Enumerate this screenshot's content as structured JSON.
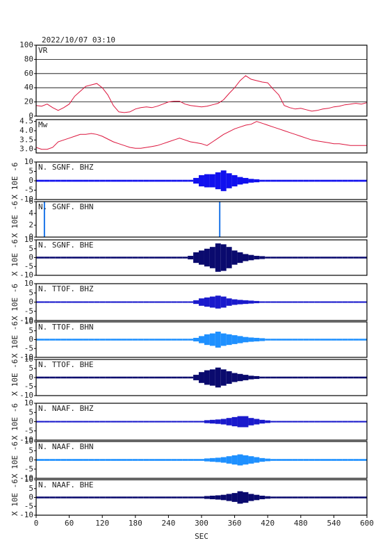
{
  "chart_data": [
    {
      "type": "line",
      "title": "2022/10/07 03:10",
      "label": "VR",
      "color": "#dc143c",
      "grid": true,
      "xlim": [
        0,
        600
      ],
      "ylim": [
        0,
        100
      ],
      "yticks": [
        0,
        20,
        40,
        60,
        80,
        100
      ],
      "x": [
        0,
        10,
        20,
        30,
        40,
        50,
        60,
        70,
        80,
        90,
        100,
        110,
        120,
        130,
        140,
        150,
        160,
        170,
        180,
        190,
        200,
        210,
        220,
        230,
        240,
        250,
        260,
        270,
        280,
        290,
        300,
        310,
        320,
        330,
        340,
        350,
        360,
        370,
        380,
        390,
        400,
        410,
        420,
        430,
        440,
        450,
        460,
        470,
        480,
        490,
        500,
        510,
        520,
        530,
        540,
        550,
        560,
        570,
        580,
        590,
        600
      ],
      "values": [
        15,
        14,
        17,
        12,
        8,
        12,
        17,
        28,
        35,
        42,
        44,
        46,
        40,
        30,
        15,
        6,
        5,
        6,
        10,
        12,
        13,
        12,
        14,
        17,
        20,
        21,
        21,
        17,
        15,
        14,
        13,
        14,
        16,
        18,
        23,
        32,
        40,
        50,
        57,
        52,
        50,
        48,
        47,
        38,
        30,
        15,
        12,
        10,
        11,
        9,
        7,
        8,
        10,
        11,
        13,
        14,
        16,
        17,
        18,
        17,
        19
      ]
    },
    {
      "type": "line",
      "label": "Mw",
      "color": "#dc143c",
      "xlim": [
        0,
        600
      ],
      "ylim": [
        2.8,
        4.6
      ],
      "yticks": [
        {
          "value": 3,
          "label": "3.0"
        },
        3.5,
        {
          "value": 4,
          "label": "4.0"
        },
        4.5
      ],
      "x": [
        0,
        10,
        20,
        30,
        40,
        50,
        60,
        70,
        80,
        90,
        100,
        110,
        120,
        130,
        140,
        150,
        160,
        170,
        180,
        190,
        200,
        210,
        220,
        230,
        240,
        250,
        260,
        270,
        280,
        290,
        300,
        310,
        320,
        330,
        340,
        350,
        360,
        370,
        380,
        390,
        400,
        410,
        420,
        430,
        440,
        450,
        460,
        470,
        480,
        490,
        500,
        510,
        520,
        530,
        540,
        550,
        560,
        570,
        580,
        590,
        600
      ],
      "values": [
        3.1,
        3.0,
        3.0,
        3.1,
        3.4,
        3.5,
        3.6,
        3.7,
        3.8,
        3.8,
        3.85,
        3.8,
        3.7,
        3.55,
        3.4,
        3.3,
        3.2,
        3.1,
        3.05,
        3.05,
        3.1,
        3.15,
        3.2,
        3.3,
        3.4,
        3.5,
        3.6,
        3.5,
        3.4,
        3.35,
        3.3,
        3.2,
        3.4,
        3.6,
        3.8,
        3.95,
        4.1,
        4.2,
        4.3,
        4.35,
        4.5,
        4.4,
        4.3,
        4.2,
        4.1,
        4.0,
        3.9,
        3.8,
        3.7,
        3.6,
        3.5,
        3.45,
        3.4,
        3.35,
        3.3,
        3.3,
        3.25,
        3.2,
        3.2,
        3.2,
        3.2
      ]
    },
    {
      "type": "envelope",
      "label": "N. SGNF. BHZ",
      "ylabel": "X 10E -6",
      "color": "#1010ee",
      "xlim": [
        0,
        600
      ],
      "ylim": [
        -10,
        10
      ],
      "yticks": [
        -10,
        -5,
        0,
        5,
        10
      ],
      "x": [
        0,
        10,
        20,
        30,
        40,
        50,
        60,
        70,
        80,
        90,
        100,
        110,
        120,
        130,
        140,
        150,
        160,
        170,
        180,
        190,
        200,
        210,
        220,
        230,
        240,
        250,
        260,
        270,
        280,
        290,
        300,
        310,
        320,
        330,
        340,
        350,
        360,
        370,
        380,
        390,
        400,
        410,
        420,
        430,
        440,
        450,
        460,
        470,
        480,
        490,
        500,
        510,
        520,
        530,
        540,
        550,
        560,
        570,
        580,
        590,
        600
      ],
      "values": [
        0.5,
        0.5,
        0.5,
        0.5,
        0.5,
        0.5,
        0.5,
        0.5,
        0.5,
        0.5,
        0.5,
        0.5,
        0.5,
        0.5,
        0.5,
        0.5,
        0.5,
        0.5,
        0.5,
        0.5,
        0.5,
        0.5,
        0.5,
        0.5,
        0.5,
        0.5,
        0.5,
        0.5,
        0.5,
        1.5,
        3,
        3.5,
        3.5,
        4.5,
        5.5,
        4,
        3,
        2,
        1.5,
        1,
        0.8,
        0.5,
        0.5,
        0.5,
        0.5,
        0.5,
        0.5,
        0.5,
        0.5,
        0.5,
        0.5,
        0.5,
        0.5,
        0.5,
        0.5,
        0.5,
        0.5,
        0.5,
        0.5,
        0.5,
        0.5
      ]
    },
    {
      "type": "stem",
      "label": "N. SGNF. BHN",
      "ylabel": "X 10E -6",
      "color": "#1a74e8",
      "xlim": [
        0,
        600
      ],
      "ylim": [
        0,
        6
      ],
      "yticks": [
        0,
        2,
        4,
        6
      ],
      "x": [
        15,
        333
      ],
      "values": [
        6,
        6
      ]
    },
    {
      "type": "envelope",
      "label": "N. SGNF. BHE",
      "ylabel": "X 10E -6",
      "color": "#0a0a6e",
      "xlim": [
        0,
        600
      ],
      "ylim": [
        -10,
        10
      ],
      "yticks": [
        -10,
        -5,
        0,
        5,
        10
      ],
      "x": [
        0,
        10,
        20,
        30,
        40,
        50,
        60,
        70,
        80,
        90,
        100,
        110,
        120,
        130,
        140,
        150,
        160,
        170,
        180,
        190,
        200,
        210,
        220,
        230,
        240,
        250,
        260,
        270,
        280,
        290,
        300,
        310,
        320,
        330,
        340,
        350,
        360,
        370,
        380,
        390,
        400,
        410,
        420,
        430,
        440,
        450,
        460,
        470,
        480,
        490,
        500,
        510,
        520,
        530,
        540,
        550,
        560,
        570,
        580,
        590,
        600
      ],
      "values": [
        0.5,
        0.5,
        0.5,
        0.5,
        0.5,
        0.5,
        0.5,
        0.5,
        0.5,
        0.5,
        0.5,
        0.5,
        0.5,
        0.5,
        0.5,
        0.5,
        0.5,
        0.5,
        0.5,
        0.5,
        0.5,
        0.5,
        0.5,
        0.5,
        0.5,
        0.5,
        0.5,
        0.5,
        1,
        3,
        4,
        5,
        6,
        8,
        7.5,
        6,
        4,
        3,
        2,
        1.5,
        1,
        0.8,
        0.5,
        0.5,
        0.5,
        0.5,
        0.5,
        0.5,
        0.5,
        0.5,
        0.5,
        0.5,
        0.5,
        0.5,
        0.5,
        0.5,
        0.5,
        0.5,
        0.5,
        0.5,
        0.5
      ]
    },
    {
      "type": "envelope",
      "label": "N. TTOF. BHZ",
      "ylabel": "X 10E -6",
      "color": "#1a1acc",
      "xlim": [
        0,
        600
      ],
      "ylim": [
        -10,
        10
      ],
      "yticks": [
        -10,
        -5,
        0,
        5,
        10
      ],
      "x": [
        0,
        10,
        20,
        30,
        40,
        50,
        60,
        70,
        80,
        90,
        100,
        110,
        120,
        130,
        140,
        150,
        160,
        170,
        180,
        190,
        200,
        210,
        220,
        230,
        240,
        250,
        260,
        270,
        280,
        290,
        300,
        310,
        320,
        330,
        340,
        350,
        360,
        370,
        380,
        390,
        400,
        410,
        420,
        430,
        440,
        450,
        460,
        470,
        480,
        490,
        500,
        510,
        520,
        530,
        540,
        550,
        560,
        570,
        580,
        590,
        600
      ],
      "values": [
        0.4,
        0.4,
        0.4,
        0.4,
        0.4,
        0.4,
        0.4,
        0.4,
        0.4,
        0.4,
        0.4,
        0.4,
        0.4,
        0.4,
        0.4,
        0.4,
        0.4,
        0.4,
        0.4,
        0.4,
        0.4,
        0.4,
        0.4,
        0.4,
        0.4,
        0.4,
        0.4,
        0.4,
        0.4,
        1,
        2,
        2.5,
        3,
        3.5,
        3,
        2,
        1.5,
        1.2,
        1,
        0.8,
        0.6,
        0.4,
        0.4,
        0.4,
        0.4,
        0.4,
        0.4,
        0.4,
        0.4,
        0.4,
        0.4,
        0.4,
        0.4,
        0.4,
        0.4,
        0.4,
        0.4,
        0.4,
        0.4,
        0.4,
        0.4
      ]
    },
    {
      "type": "envelope",
      "label": "N. TTOF. BHN",
      "ylabel": "X 10E -6",
      "color": "#1e90ff",
      "xlim": [
        0,
        600
      ],
      "ylim": [
        -10,
        10
      ],
      "yticks": [
        -10,
        -5,
        0,
        5,
        10
      ],
      "x": [
        0,
        10,
        20,
        30,
        40,
        50,
        60,
        70,
        80,
        90,
        100,
        110,
        120,
        130,
        140,
        150,
        160,
        170,
        180,
        190,
        200,
        210,
        220,
        230,
        240,
        250,
        260,
        270,
        280,
        290,
        300,
        310,
        320,
        330,
        340,
        350,
        360,
        370,
        380,
        390,
        400,
        410,
        420,
        430,
        440,
        450,
        460,
        470,
        480,
        490,
        500,
        510,
        520,
        530,
        540,
        550,
        560,
        570,
        580,
        590,
        600
      ],
      "values": [
        0.5,
        0.5,
        0.5,
        0.5,
        0.5,
        0.5,
        0.5,
        0.5,
        0.5,
        0.5,
        0.5,
        0.5,
        0.5,
        0.5,
        0.5,
        0.5,
        0.5,
        0.5,
        0.5,
        0.5,
        0.5,
        0.5,
        0.5,
        0.5,
        0.5,
        0.5,
        0.5,
        0.5,
        0.5,
        1,
        2,
        3,
        3.5,
        4.5,
        3.5,
        3,
        2.5,
        2,
        1.5,
        1.2,
        1,
        0.8,
        0.5,
        0.5,
        0.5,
        0.5,
        0.5,
        0.5,
        0.5,
        0.5,
        0.5,
        0.5,
        0.5,
        0.5,
        0.5,
        0.5,
        0.5,
        0.5,
        0.5,
        0.5,
        0.5
      ]
    },
    {
      "type": "envelope",
      "label": "N. TTOF. BHE",
      "ylabel": "X 10E -6",
      "color": "#0a0a6e",
      "xlim": [
        0,
        600
      ],
      "ylim": [
        -10,
        10
      ],
      "yticks": [
        -10,
        -5,
        0,
        5,
        10
      ],
      "x": [
        0,
        10,
        20,
        30,
        40,
        50,
        60,
        70,
        80,
        90,
        100,
        110,
        120,
        130,
        140,
        150,
        160,
        170,
        180,
        190,
        200,
        210,
        220,
        230,
        240,
        250,
        260,
        270,
        280,
        290,
        300,
        310,
        320,
        330,
        340,
        350,
        360,
        370,
        380,
        390,
        400,
        410,
        420,
        430,
        440,
        450,
        460,
        470,
        480,
        490,
        500,
        510,
        520,
        530,
        540,
        550,
        560,
        570,
        580,
        590,
        600
      ],
      "values": [
        0.5,
        0.5,
        0.5,
        0.5,
        0.5,
        0.5,
        0.5,
        0.5,
        0.5,
        0.5,
        0.5,
        0.5,
        0.5,
        0.5,
        0.5,
        0.5,
        0.5,
        0.5,
        0.5,
        0.5,
        0.5,
        0.5,
        0.5,
        0.5,
        0.5,
        0.5,
        0.5,
        0.5,
        0.5,
        1.5,
        3,
        4,
        4.5,
        5.5,
        4.5,
        3.5,
        2.5,
        2,
        1.5,
        1,
        0.8,
        0.5,
        0.5,
        0.5,
        0.5,
        0.5,
        0.5,
        0.5,
        0.5,
        0.5,
        0.5,
        0.5,
        0.5,
        0.5,
        0.5,
        0.5,
        0.5,
        0.5,
        0.5,
        0.5,
        0.5
      ]
    },
    {
      "type": "envelope",
      "label": "N. NAAF. BHZ",
      "ylabel": "X 10E -6",
      "color": "#1a1acc",
      "xlim": [
        0,
        600
      ],
      "ylim": [
        -10,
        10
      ],
      "yticks": [
        -10,
        -5,
        0,
        5,
        10
      ],
      "x": [
        0,
        10,
        20,
        30,
        40,
        50,
        60,
        70,
        80,
        90,
        100,
        110,
        120,
        130,
        140,
        150,
        160,
        170,
        180,
        190,
        200,
        210,
        220,
        230,
        240,
        250,
        260,
        270,
        280,
        290,
        300,
        310,
        320,
        330,
        340,
        350,
        360,
        370,
        380,
        390,
        400,
        410,
        420,
        430,
        440,
        450,
        460,
        470,
        480,
        490,
        500,
        510,
        520,
        530,
        540,
        550,
        560,
        570,
        580,
        590,
        600
      ],
      "values": [
        0.4,
        0.4,
        0.4,
        0.4,
        0.4,
        0.4,
        0.4,
        0.4,
        0.4,
        0.4,
        0.4,
        0.4,
        0.4,
        0.4,
        0.4,
        0.4,
        0.4,
        0.4,
        0.4,
        0.4,
        0.4,
        0.4,
        0.4,
        0.4,
        0.4,
        0.4,
        0.4,
        0.4,
        0.4,
        0.4,
        0.4,
        0.8,
        1,
        1.2,
        1.5,
        2,
        2.5,
        3,
        3,
        2,
        1.5,
        1,
        0.7,
        0.4,
        0.4,
        0.4,
        0.4,
        0.4,
        0.4,
        0.4,
        0.4,
        0.4,
        0.4,
        0.4,
        0.4,
        0.4,
        0.4,
        0.4,
        0.4,
        0.4,
        0.4
      ]
    },
    {
      "type": "envelope",
      "label": "N. NAAF. BHN",
      "ylabel": "X 10E -6",
      "color": "#1e90ff",
      "xlim": [
        0,
        600
      ],
      "ylim": [
        -10,
        10
      ],
      "yticks": [
        -10,
        -5,
        0,
        5,
        10
      ],
      "x": [
        0,
        10,
        20,
        30,
        40,
        50,
        60,
        70,
        80,
        90,
        100,
        110,
        120,
        130,
        140,
        150,
        160,
        170,
        180,
        190,
        200,
        210,
        220,
        230,
        240,
        250,
        260,
        270,
        280,
        290,
        300,
        310,
        320,
        330,
        340,
        350,
        360,
        370,
        380,
        390,
        400,
        410,
        420,
        430,
        440,
        450,
        460,
        470,
        480,
        490,
        500,
        510,
        520,
        530,
        540,
        550,
        560,
        570,
        580,
        590,
        600
      ],
      "values": [
        0.5,
        0.5,
        0.5,
        0.5,
        0.5,
        0.5,
        0.5,
        0.5,
        0.5,
        0.5,
        0.5,
        0.5,
        0.5,
        0.5,
        0.5,
        0.5,
        0.5,
        0.5,
        0.5,
        0.5,
        0.5,
        0.5,
        0.5,
        0.5,
        0.5,
        0.5,
        0.5,
        0.5,
        0.5,
        0.5,
        0.5,
        0.8,
        1,
        1.2,
        1.5,
        2,
        2.5,
        3,
        2.5,
        2,
        1.5,
        1,
        0.7,
        0.5,
        0.5,
        0.5,
        0.5,
        0.5,
        0.5,
        0.5,
        0.5,
        0.5,
        0.5,
        0.5,
        0.5,
        0.5,
        0.5,
        0.5,
        0.5,
        0.5,
        0.5
      ]
    },
    {
      "type": "envelope",
      "label": "N. NAAF. BHE",
      "ylabel": "X 10E -6",
      "color": "#0a0a6e",
      "xlim": [
        0,
        600
      ],
      "ylim": [
        -10,
        10
      ],
      "yticks": [
        -10,
        -5,
        0,
        5,
        10
      ],
      "xticks": [
        0,
        60,
        120,
        180,
        240,
        300,
        360,
        420,
        480,
        540,
        600
      ],
      "xlabel": "SEC",
      "x": [
        0,
        10,
        20,
        30,
        40,
        50,
        60,
        70,
        80,
        90,
        100,
        110,
        120,
        130,
        140,
        150,
        160,
        170,
        180,
        190,
        200,
        210,
        220,
        230,
        240,
        250,
        260,
        270,
        280,
        290,
        300,
        310,
        320,
        330,
        340,
        350,
        360,
        370,
        380,
        390,
        400,
        410,
        420,
        430,
        440,
        450,
        460,
        470,
        480,
        490,
        500,
        510,
        520,
        530,
        540,
        550,
        560,
        570,
        580,
        590,
        600
      ],
      "values": [
        0.5,
        0.5,
        0.5,
        0.5,
        0.5,
        0.5,
        0.5,
        0.5,
        0.5,
        0.5,
        0.5,
        0.5,
        0.5,
        0.5,
        0.5,
        0.5,
        0.5,
        0.5,
        0.5,
        0.5,
        0.5,
        0.5,
        0.5,
        0.5,
        0.5,
        0.5,
        0.5,
        0.5,
        0.5,
        0.5,
        0.5,
        0.8,
        1,
        1.2,
        1.5,
        2,
        2.5,
        3.5,
        3,
        2,
        1.5,
        1,
        0.7,
        0.5,
        0.5,
        0.5,
        0.5,
        0.5,
        0.5,
        0.5,
        0.5,
        0.5,
        0.5,
        0.5,
        0.5,
        0.5,
        0.5,
        0.5,
        0.5,
        0.5,
        0.5
      ]
    }
  ]
}
